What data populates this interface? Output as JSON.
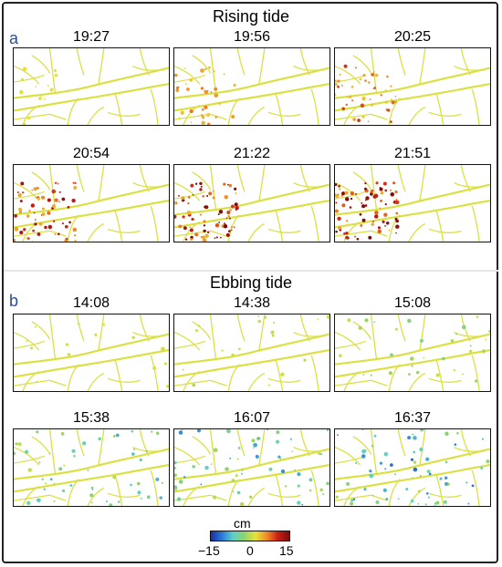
{
  "rising": {
    "title": "Rising tide",
    "label": "a",
    "times": [
      "19:27",
      "19:56",
      "20:25",
      "20:54",
      "21:22",
      "21:51"
    ],
    "intensity": [
      0.05,
      0.35,
      0.5,
      0.8,
      0.9,
      1.0
    ]
  },
  "ebbing": {
    "title": "Ebbing tide",
    "label": "b",
    "times": [
      "14:08",
      "14:38",
      "15:08",
      "15:38",
      "16:07",
      "16:37"
    ],
    "intensity": [
      0.05,
      0.12,
      0.3,
      0.6,
      0.7,
      0.8
    ]
  },
  "colorbar": {
    "unit": "cm",
    "ticks": [
      "−15",
      "0",
      "15"
    ],
    "colors": [
      "#1a2e9e",
      "#2b7bd9",
      "#5fd0c8",
      "#8fd36a",
      "#e8e23a",
      "#f08a25",
      "#c81e14",
      "#7d0c0c"
    ]
  }
}
